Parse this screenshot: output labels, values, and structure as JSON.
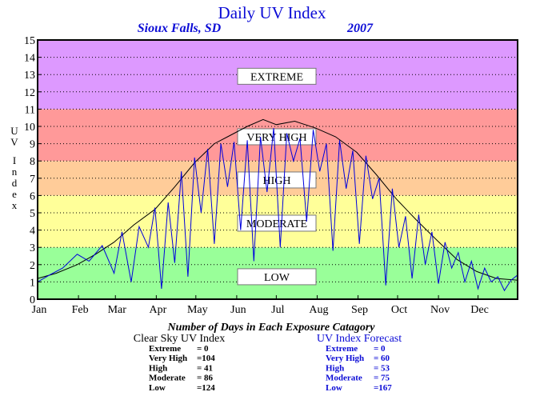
{
  "chart_data": {
    "type": "line",
    "title": "Daily UV Index",
    "location": "Sioux Falls, SD",
    "year": "2007",
    "ylabel": "UV Index",
    "ylim": [
      0,
      15
    ],
    "yticks": [
      "0",
      "1",
      "2",
      "3",
      "4",
      "5",
      "6",
      "7",
      "8",
      "9",
      "10",
      "11",
      "12",
      "13",
      "14",
      "15"
    ],
    "months": [
      "Jan",
      "Feb",
      "Mar",
      "Apr",
      "May",
      "Jun",
      "Jul",
      "Aug",
      "Sep",
      "Oct",
      "Nov",
      "Dec"
    ],
    "grid": true,
    "bands": [
      {
        "label": "LOW",
        "from": 0,
        "to": 3,
        "color": "#99ff99",
        "label_at": 1.3
      },
      {
        "label": "MODERATE",
        "from": 3,
        "to": 6,
        "color": "#ffff99",
        "label_at": 4.4
      },
      {
        "label": "HIGH",
        "from": 6,
        "to": 8,
        "color": "#ffcc99",
        "label_at": 6.9
      },
      {
        "label": "VERY HIGH",
        "from": 8,
        "to": 11,
        "color": "#ff9999",
        "label_at": 9.4
      },
      {
        "label": "EXTREME",
        "from": 11,
        "to": 15,
        "color": "#dd99ff",
        "label_at": 12.9
      }
    ],
    "series": [
      {
        "name": "Clear Sky UV Index",
        "color": "#000000",
        "x": [
          1,
          15,
          31,
          45,
          59,
          74,
          90,
          105,
          120,
          135,
          145,
          160,
          172,
          182,
          196,
          212,
          227,
          243,
          258,
          273,
          288,
          304,
          319,
          334,
          349,
          365
        ],
        "y": [
          1.2,
          1.5,
          2.0,
          2.6,
          3.3,
          4.3,
          5.2,
          6.5,
          7.9,
          9.0,
          9.4,
          10.0,
          10.4,
          10.1,
          10.3,
          9.9,
          9.4,
          8.5,
          7.2,
          5.8,
          4.6,
          3.4,
          2.3,
          1.6,
          1.2,
          1.1
        ]
      },
      {
        "name": "UV Index Forecast",
        "color": "#0000dd",
        "x": [
          1,
          10,
          20,
          31,
          40,
          50,
          59,
          65,
          72,
          78,
          85,
          90,
          95,
          100,
          105,
          110,
          115,
          120,
          125,
          130,
          135,
          140,
          145,
          150,
          155,
          160,
          165,
          170,
          175,
          180,
          185,
          190,
          195,
          200,
          205,
          210,
          215,
          220,
          225,
          230,
          235,
          240,
          245,
          250,
          255,
          260,
          265,
          270,
          275,
          280,
          285,
          290,
          295,
          300,
          305,
          310,
          315,
          320,
          325,
          330,
          335,
          340,
          345,
          350,
          355,
          360,
          365
        ],
        "y": [
          1.0,
          1.4,
          1.8,
          2.6,
          2.2,
          3.1,
          1.5,
          3.9,
          1.0,
          4.2,
          3.0,
          5.3,
          0.6,
          5.6,
          2.1,
          7.4,
          1.3,
          8.2,
          5.0,
          8.7,
          3.2,
          9.0,
          6.5,
          9.1,
          4.0,
          9.2,
          2.2,
          9.4,
          6.2,
          9.9,
          3.0,
          9.6,
          8.0,
          9.3,
          4.5,
          9.8,
          7.4,
          9.0,
          2.8,
          9.2,
          6.4,
          8.6,
          3.2,
          8.3,
          5.8,
          7.0,
          0.8,
          6.4,
          3.0,
          4.8,
          1.2,
          4.9,
          2.0,
          3.9,
          0.9,
          3.3,
          1.8,
          2.7,
          1.0,
          2.2,
          0.6,
          1.8,
          1.0,
          1.3,
          0.5,
          1.1,
          1.4
        ]
      }
    ],
    "footer_title": "Number of Days in Each Exposure Catagory",
    "tables": [
      {
        "title": "Clear Sky UV Index",
        "color": "#000000",
        "rows": [
          {
            "label": "Extreme",
            "value": "=     0"
          },
          {
            "label": "Very High",
            "value": "=104"
          },
          {
            "label": "High",
            "value": "=   41"
          },
          {
            "label": "Moderate",
            "value": "=   86"
          },
          {
            "label": "Low",
            "value": "=124"
          }
        ]
      },
      {
        "title": "UV Index Forecast",
        "color": "#0b0bd6",
        "rows": [
          {
            "label": "Extreme",
            "value": "=     0"
          },
          {
            "label": "Very High",
            "value": "=  60"
          },
          {
            "label": "High",
            "value": "=  53"
          },
          {
            "label": "Moderate",
            "value": "=  75"
          },
          {
            "label": "Low",
            "value": "=167"
          }
        ]
      }
    ]
  }
}
